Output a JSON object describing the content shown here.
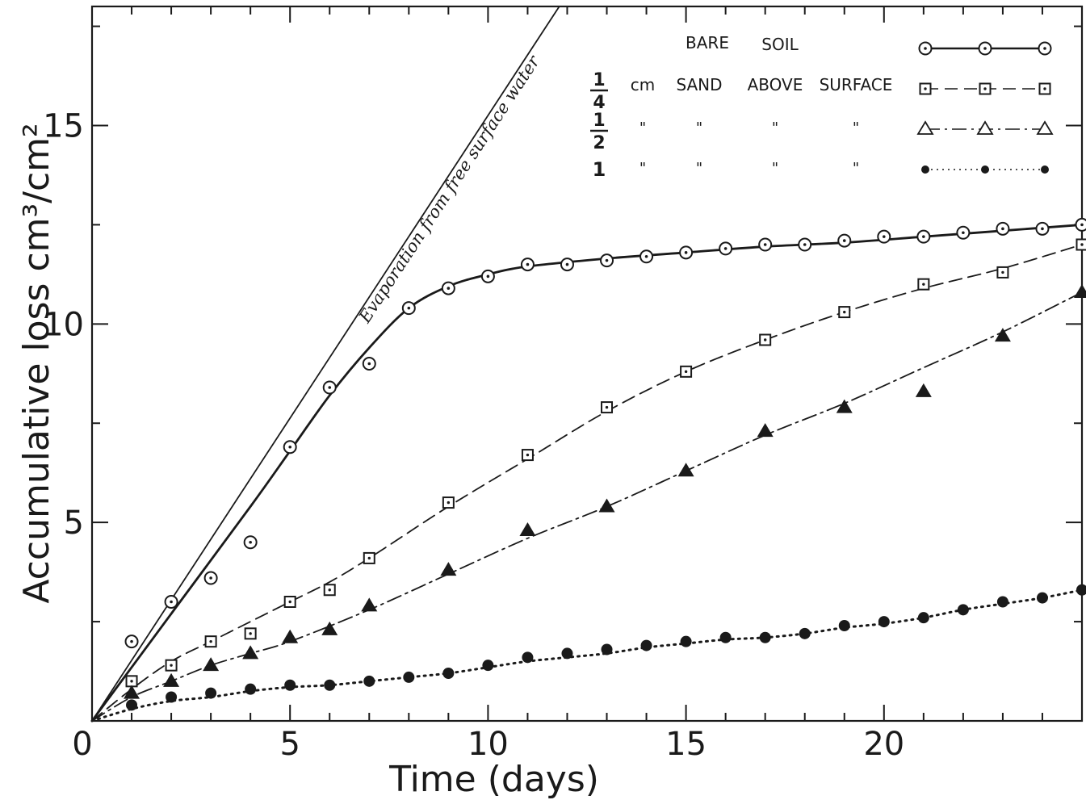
{
  "chart_data": {
    "type": "line",
    "xlabel": "Time (days)",
    "ylabel": "Accumulative loss cm³/cm²",
    "xlim": [
      0,
      25
    ],
    "ylim": [
      0,
      18
    ],
    "xticks": [
      {
        "value": 0,
        "label": "0"
      },
      {
        "value": 5,
        "label": "5"
      },
      {
        "value": 10,
        "label": "10"
      },
      {
        "value": 15,
        "label": "15"
      },
      {
        "value": 20,
        "label": "20"
      }
    ],
    "yticks": [
      {
        "value": 5,
        "label": "5"
      },
      {
        "value": 10,
        "label": "10"
      },
      {
        "value": 15,
        "label": "15"
      }
    ],
    "grid": false,
    "legend_position": "top-right",
    "legend": {
      "header": [
        "BARE",
        "SOIL"
      ],
      "columns": [
        "cm",
        "SAND",
        "ABOVE",
        "SURFACE"
      ],
      "ditto": "\"",
      "fractions": [
        {
          "num": "1",
          "den": "4"
        },
        {
          "num": "1",
          "den": "2"
        },
        {
          "whole": "1"
        }
      ]
    },
    "reference_line": {
      "label": "Evaporation from free surface water",
      "x": [
        0,
        11.8
      ],
      "y": [
        0,
        18
      ]
    },
    "series": [
      {
        "marker": "open-circle-dot",
        "line": "solid",
        "x": [
          1,
          2,
          3,
          4,
          5,
          6,
          7,
          8,
          9,
          10,
          11,
          12,
          13,
          14,
          15,
          16,
          17,
          18,
          19,
          20,
          21,
          22,
          23,
          24,
          25
        ],
        "y": [
          2.0,
          3.0,
          3.6,
          4.5,
          6.9,
          8.4,
          9.0,
          10.4,
          10.9,
          11.2,
          11.5,
          11.5,
          11.6,
          11.7,
          11.8,
          11.9,
          12.0,
          12.0,
          12.1,
          12.2,
          12.2,
          12.3,
          12.4,
          12.4,
          12.5
        ],
        "curve_x": [
          0,
          2,
          4,
          5,
          6,
          7,
          8,
          9,
          10,
          11,
          13,
          15,
          17,
          19,
          21,
          23,
          25
        ],
        "curve_y": [
          0,
          2.7,
          5.4,
          6.8,
          8.2,
          9.4,
          10.4,
          10.95,
          11.25,
          11.45,
          11.65,
          11.8,
          11.95,
          12.05,
          12.2,
          12.35,
          12.5
        ]
      },
      {
        "marker": "open-square-dot",
        "line": "dashed",
        "x": [
          1,
          2,
          3,
          4,
          5,
          6,
          7,
          9,
          11,
          13,
          15,
          17,
          19,
          21,
          23,
          25
        ],
        "y": [
          1.0,
          1.4,
          2.0,
          2.2,
          3.0,
          3.3,
          4.1,
          5.5,
          6.7,
          7.9,
          8.8,
          9.6,
          10.3,
          11.0,
          11.3,
          12.0
        ],
        "curve_x": [
          0,
          1,
          2,
          3,
          4,
          5,
          6,
          7,
          9,
          11,
          13,
          15,
          17,
          19,
          21,
          23,
          25
        ],
        "curve_y": [
          0,
          0.8,
          1.5,
          2.0,
          2.5,
          3.0,
          3.5,
          4.1,
          5.4,
          6.6,
          7.8,
          8.8,
          9.6,
          10.3,
          10.9,
          11.4,
          12.0
        ]
      },
      {
        "marker": "filled-triangle",
        "line": "dash-dot",
        "x": [
          1,
          2,
          3,
          4,
          5,
          6,
          7,
          9,
          11,
          13,
          15,
          17,
          19,
          21,
          23,
          25
        ],
        "y": [
          0.7,
          1.0,
          1.4,
          1.7,
          2.1,
          2.3,
          2.9,
          3.8,
          4.8,
          5.4,
          6.3,
          7.3,
          7.9,
          8.3,
          9.7,
          10.8
        ],
        "curve_x": [
          0,
          1,
          2,
          3,
          4,
          5,
          7,
          9,
          11,
          13,
          15,
          17,
          19,
          21,
          23,
          25
        ],
        "curve_y": [
          0,
          0.6,
          1.0,
          1.4,
          1.7,
          2.0,
          2.8,
          3.7,
          4.6,
          5.4,
          6.3,
          7.2,
          8.0,
          8.9,
          9.8,
          10.8
        ]
      },
      {
        "marker": "filled-circle",
        "line": "dotted",
        "x": [
          1,
          2,
          3,
          4,
          5,
          6,
          7,
          8,
          9,
          10,
          11,
          12,
          13,
          14,
          15,
          16,
          17,
          18,
          19,
          20,
          21,
          22,
          23,
          24,
          25
        ],
        "y": [
          0.4,
          0.6,
          0.7,
          0.8,
          0.9,
          0.9,
          1.0,
          1.1,
          1.2,
          1.4,
          1.6,
          1.7,
          1.8,
          1.9,
          2.0,
          2.1,
          2.1,
          2.2,
          2.4,
          2.5,
          2.6,
          2.8,
          3.0,
          3.1,
          3.3
        ],
        "curve_x": [
          0,
          1,
          2,
          3,
          4,
          5,
          6,
          7,
          8,
          9,
          10,
          11,
          12,
          13,
          14,
          15,
          16,
          17,
          18,
          19,
          20,
          21,
          22,
          23,
          24,
          25
        ],
        "curve_y": [
          0,
          0.3,
          0.5,
          0.6,
          0.75,
          0.85,
          0.9,
          1.0,
          1.1,
          1.2,
          1.35,
          1.5,
          1.6,
          1.7,
          1.85,
          1.95,
          2.05,
          2.1,
          2.2,
          2.35,
          2.45,
          2.6,
          2.8,
          2.95,
          3.1,
          3.3
        ]
      }
    ]
  }
}
